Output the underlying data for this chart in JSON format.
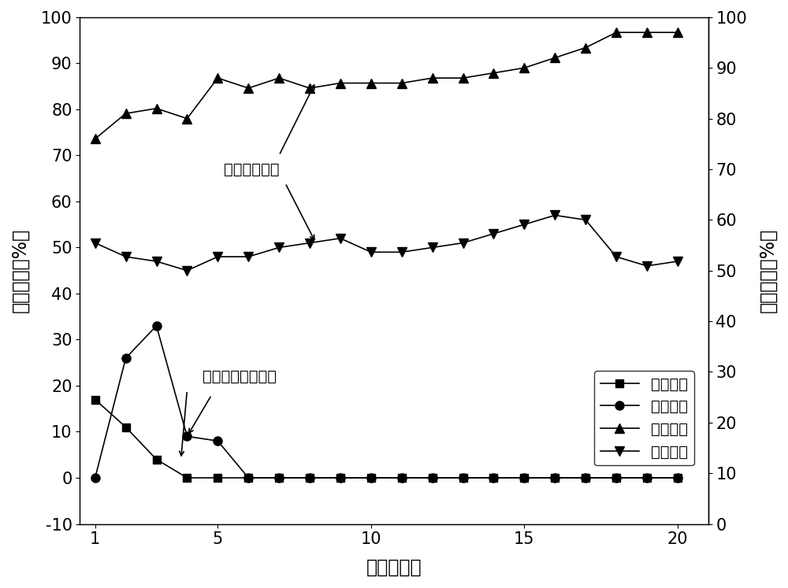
{
  "x": [
    1,
    2,
    3,
    4,
    5,
    6,
    7,
    8,
    9,
    10,
    11,
    12,
    13,
    14,
    15,
    16,
    17,
    18,
    19,
    20
  ],
  "nitrosation_no_adsorb": [
    17,
    11,
    4,
    0,
    0,
    0,
    0,
    0,
    0,
    0,
    0,
    0,
    0,
    0,
    0,
    0,
    0,
    0,
    0,
    0
  ],
  "ammonia_removal_no_adsorb": [
    0,
    26,
    33,
    9,
    8,
    0,
    0,
    0,
    0,
    0,
    0,
    0,
    0,
    0,
    0,
    0,
    0,
    0,
    0,
    0
  ],
  "nitrosation_adsorb": [
    76,
    81,
    82,
    80,
    88,
    86,
    88,
    86,
    87,
    87,
    87,
    88,
    88,
    89,
    90,
    92,
    94,
    97,
    97,
    97
  ],
  "ammonia_removal_adsorb": [
    51,
    48,
    47,
    45,
    48,
    48,
    50,
    51,
    52,
    49,
    49,
    50,
    51,
    53,
    55,
    57,
    56,
    48,
    46,
    47
  ],
  "left_ylim": [
    -10,
    100
  ],
  "right_ylim": [
    0,
    100
  ],
  "xlim": [
    0.5,
    21
  ],
  "ylabel_left": "氨去除率（%）",
  "ylabel_right": "亚碑化率（%）",
  "xlabel": "周期（个）",
  "legend_label1": "亚碑化率",
  "legend_label2": "氨去除率",
  "legend_label3": "亚碑化率",
  "legend_label4": "氨去除率",
  "annot1_text": "吸附氨氮材料",
  "annot2_text": "未加吸附氨氮材料",
  "line_color": "#000000",
  "bg_color": "#ffffff",
  "fontsize_label": 17,
  "fontsize_tick": 15,
  "fontsize_legend": 14,
  "fontsize_annotation": 14
}
